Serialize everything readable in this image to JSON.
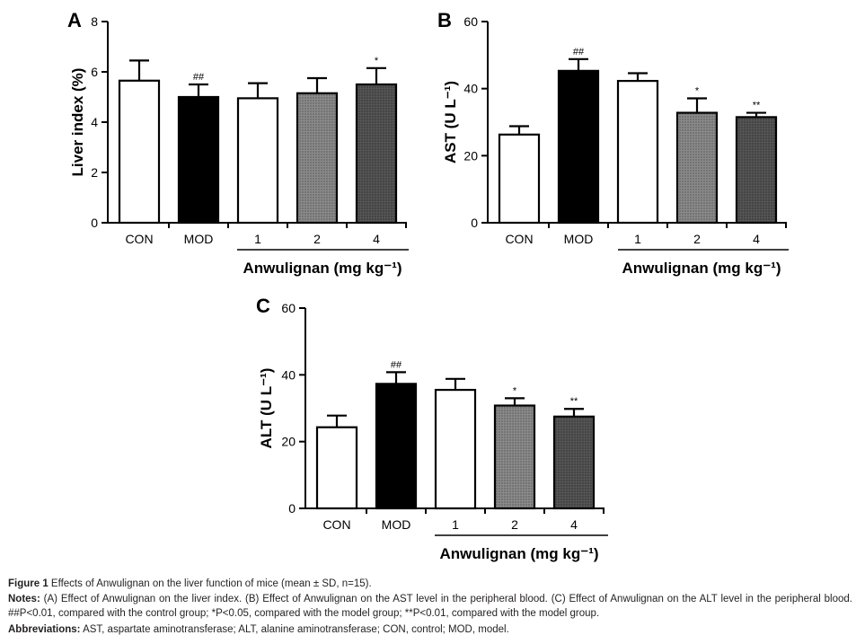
{
  "chart_data": [
    {
      "type": "bar",
      "panel_label": "A",
      "ylabel": "Liver index (%)",
      "ylim": [
        0,
        8
      ],
      "yticks": [
        "0",
        "2",
        "4",
        "6",
        "8"
      ],
      "categories": [
        "CON",
        "MOD",
        "1",
        "2",
        "4"
      ],
      "values": [
        5.65,
        5.0,
        4.95,
        5.15,
        5.5
      ],
      "errors": [
        0.8,
        0.5,
        0.6,
        0.6,
        0.65
      ],
      "annotations": [
        "",
        "##",
        "",
        "",
        "*"
      ],
      "group_label": "Anwulignan (mg kg⁻¹)"
    },
    {
      "type": "bar",
      "panel_label": "B",
      "ylabel": "AST (U L⁻¹)",
      "ylim": [
        0,
        60
      ],
      "yticks": [
        "0",
        "20",
        "40",
        "60"
      ],
      "categories": [
        "CON",
        "MOD",
        "1",
        "2",
        "4"
      ],
      "values": [
        26.3,
        45.3,
        42.3,
        32.8,
        31.5
      ],
      "errors": [
        2.5,
        3.5,
        2.3,
        4.3,
        1.3
      ],
      "annotations": [
        "",
        "##",
        "",
        "*",
        "**"
      ],
      "group_label": "Anwulignan (mg kg⁻¹)"
    },
    {
      "type": "bar",
      "panel_label": "C",
      "ylabel": "ALT (U L⁻¹)",
      "ylim": [
        0,
        60
      ],
      "yticks": [
        "0",
        "20",
        "40",
        "60"
      ],
      "categories": [
        "CON",
        "MOD",
        "1",
        "2",
        "4"
      ],
      "values": [
        24.3,
        37.3,
        35.5,
        30.8,
        27.5
      ],
      "errors": [
        3.5,
        3.5,
        3.3,
        2.2,
        2.3
      ],
      "annotations": [
        "",
        "##",
        "",
        "*",
        "**"
      ],
      "group_label": "Anwulignan (mg kg⁻¹)"
    }
  ],
  "bar_fills": [
    "#ffffff",
    "#000000",
    "#ffffff",
    "#8a8a8a",
    "#555555"
  ],
  "dot_colors": [
    "",
    "",
    "#6e6e6e",
    "#3a3a3a",
    "#1a1a1a"
  ],
  "caption": {
    "figure_label": "Figure 1",
    "figure_text": " Effects of Anwulignan on the liver function of mice (mean ± SD, n=15).",
    "notes_label": "Notes:",
    "notes_text": " (A) Effect of Anwulignan on the liver index. (B) Effect of Anwulignan on the AST level in the peripheral blood. (C) Effect of Anwulignan on the ALT level in the peripheral blood. ##P<0.01, compared with the control group; *P<0.05, compared with the model group; **P<0.01, compared with the model group.",
    "abbr_label": "Abbreviations:",
    "abbr_text": " AST, aspartate aminotransferase; ALT, alanine aminotransferase; CON, control; MOD, model."
  }
}
